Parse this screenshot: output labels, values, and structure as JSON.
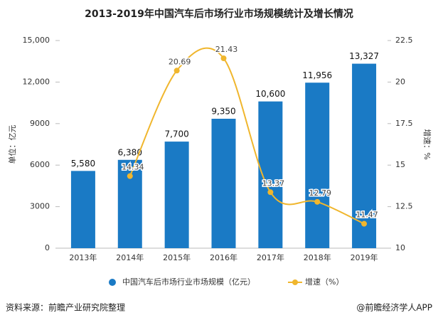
{
  "chart_data": {
    "type": "bar_line",
    "title": "2013-2019年中国汽车后市场行业市场规模统计及增长情况",
    "ylabel": "单位：亿元",
    "y2label": "增速：%",
    "categories": [
      "2013年",
      "2014年",
      "2015年",
      "2016年",
      "2017年",
      "2018年",
      "2019年"
    ],
    "series": [
      {
        "name": "中国汽车后市场行业市场规模（亿元）",
        "color": "#1a7ac5",
        "type": "bar",
        "values": [
          5580,
          6380,
          7700,
          9350,
          10600,
          11956,
          13327
        ],
        "value_labels": [
          "5,580",
          "6,380",
          "7,700",
          "9,350",
          "10,600",
          "11,956",
          "13,327"
        ]
      },
      {
        "name": "增速（%）",
        "color": "#f0b62d",
        "type": "line",
        "axis": "y2",
        "values": [
          null,
          14.34,
          20.69,
          21.43,
          13.37,
          12.79,
          11.47
        ]
      }
    ],
    "ylim": [
      0,
      15000
    ],
    "yticks": [
      0,
      3000,
      6000,
      9000,
      {
        "value": 12000,
        "label": "12,000"
      },
      {
        "value": 15000,
        "label": "15,000"
      }
    ],
    "y2lim": [
      10,
      22.5
    ],
    "y2ticks": [
      10,
      12.5,
      15,
      17.5,
      20,
      22.5
    ],
    "legend": "bottom",
    "source": "资料来源：前瞻产业研究院整理",
    "credit": "@前瞻经济学人APP"
  }
}
